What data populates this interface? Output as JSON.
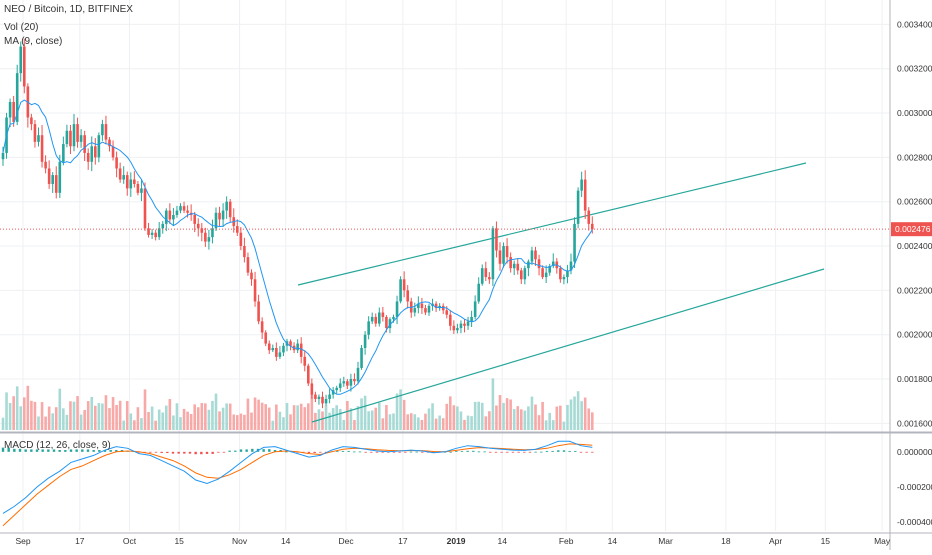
{
  "legend": {
    "title": "NEO / Bitcoin, 1D, BITFINEX",
    "volume": "Vol (20)",
    "ma": "MA (9, close)",
    "macd": "MACD (12, 26, close, 9)"
  },
  "colors": {
    "up": "#26a69a",
    "down": "#ef5350",
    "vol_up": "#a7dad4",
    "vol_down": "#f7a9a7",
    "ma": "#2196f3",
    "channel": "#26a69a",
    "price_line": "#ef5350",
    "macd_line": "#2196f3",
    "signal_line": "#ff6d00",
    "grid": "#eef0f3",
    "axis_text": "#333333"
  },
  "chart_data": [
    {
      "type": "candlestick",
      "title": "NEO / Bitcoin, 1D, BITFINEX",
      "x_ticks": [
        "Sep",
        "17",
        "Oct",
        "15",
        "Nov",
        "14",
        "Dec",
        "17",
        "2019",
        "14",
        "Feb",
        "14",
        "Mar",
        "18",
        "Apr",
        "15",
        "May"
      ],
      "x_tick_days": [
        0,
        16,
        30,
        44,
        61,
        74,
        91,
        107,
        122,
        135,
        153,
        166,
        181,
        198,
        212,
        226,
        242
      ],
      "y_ticks": [
        "0.001600",
        "0.001800",
        "0.002000",
        "0.002200",
        "0.002400",
        "0.002600",
        "0.002800",
        "0.003000",
        "0.003200",
        "0.003400"
      ],
      "ylim": [
        0.00157,
        0.00351
      ],
      "last_price": "0.002476",
      "last_price_value": 0.002476,
      "ma_label": "MA (9, close)",
      "closes": [
        0.00282,
        0.00298,
        0.00305,
        0.00296,
        0.00318,
        0.0033,
        0.00312,
        0.00298,
        0.00295,
        0.00287,
        0.0029,
        0.00278,
        0.00275,
        0.00268,
        0.00272,
        0.00264,
        0.00278,
        0.00286,
        0.00292,
        0.00285,
        0.00295,
        0.00287,
        0.0029,
        0.00282,
        0.00278,
        0.00285,
        0.0028,
        0.0029,
        0.00295,
        0.00288,
        0.00285,
        0.0028,
        0.00275,
        0.0027,
        0.00272,
        0.00266,
        0.0027,
        0.00268,
        0.00264,
        0.00266,
        0.00248,
        0.00245,
        0.00246,
        0.00244,
        0.00248,
        0.0025,
        0.00256,
        0.00252,
        0.00254,
        0.00256,
        0.00258,
        0.00256,
        0.00255,
        0.00254,
        0.0025,
        0.00248,
        0.00246,
        0.00242,
        0.00244,
        0.00248,
        0.00255,
        0.00252,
        0.00256,
        0.0026,
        0.00253,
        0.00249,
        0.00246,
        0.0024,
        0.00235,
        0.00228,
        0.00225,
        0.00215,
        0.00206,
        0.00201,
        0.00196,
        0.00193,
        0.00194,
        0.0019,
        0.00192,
        0.00195,
        0.00197,
        0.00195,
        0.00193,
        0.00196,
        0.0019,
        0.00186,
        0.00178,
        0.00173,
        0.00171,
        0.00172,
        0.00169,
        0.00171,
        0.00173,
        0.00175,
        0.00176,
        0.00178,
        0.00179,
        0.00177,
        0.0018,
        0.00179,
        0.00185,
        0.00194,
        0.002,
        0.00206,
        0.00208,
        0.00205,
        0.0021,
        0.00208,
        0.00203,
        0.00207,
        0.00208,
        0.00215,
        0.00225,
        0.0022,
        0.00215,
        0.0021,
        0.00212,
        0.00214,
        0.00212,
        0.0021,
        0.00213,
        0.00214,
        0.00212,
        0.00213,
        0.00211,
        0.00209,
        0.00204,
        0.00202,
        0.00203,
        0.00205,
        0.00204,
        0.00206,
        0.00208,
        0.00215,
        0.00223,
        0.0023,
        0.00226,
        0.00225,
        0.00248,
        0.00238,
        0.00232,
        0.0024,
        0.00235,
        0.0023,
        0.00232,
        0.00229,
        0.00225,
        0.0023,
        0.00233,
        0.00238,
        0.00234,
        0.0023,
        0.00226,
        0.00228,
        0.00231,
        0.00233,
        0.0023,
        0.00225,
        0.00226,
        0.00229,
        0.00233,
        0.0025,
        0.00265,
        0.0027,
        0.00256,
        0.0025,
        0.002476
      ],
      "macd": {
        "yticks": [
          "0.000000",
          "-0.000200",
          "-0.000400"
        ],
        "ylim": [
          -0.00045,
          9e-05
        ],
        "hist_ylim": [
          -5e-05,
          5e-05
        ],
        "series": [
          {
            "name": "MACD",
            "values": [
              -0.00035,
              -0.00031,
              -0.00026,
              -0.0002,
              -0.00015,
              -0.00011,
              -6e-05,
              -4e-05,
              -2e-05,
              1e-05,
              3e-05,
              2e-05,
              -1e-05,
              -2e-05,
              -5e-05,
              -8e-05,
              -0.00011,
              -0.00016,
              -0.00018,
              -0.000155,
              -0.00011,
              -6e-05,
              -1e-05,
              2.5e-05,
              3e-05,
              1e-05,
              -1e-05,
              -3e-05,
              -2e-05,
              1e-05,
              3e-05,
              2.5e-05,
              1.5e-05,
              5e-06,
              0.0,
              5e-06,
              1e-05,
              5e-06,
              -5e-06,
              0.0,
              2e-05,
              3.5e-05,
              3e-05,
              2e-05,
              1.5e-05,
              1e-05,
              8e-06,
              1.5e-05,
              3.5e-05,
              6e-05,
              6e-05,
              3.5e-05,
              2.5e-05
            ]
          },
          {
            "name": "Signal",
            "values": [
              -0.00042,
              -0.00036,
              -0.0003,
              -0.00024,
              -0.00019,
              -0.00014,
              -0.0001,
              -8e-05,
              -5e-05,
              -2e-05,
              0.0,
              5e-06,
              0.0,
              -1e-05,
              -3e-05,
              -5e-05,
              -8e-05,
              -0.00012,
              -0.000145,
              -0.00015,
              -0.00013,
              -0.0001,
              -6e-05,
              -2e-05,
              0.0,
              5e-06,
              0.0,
              -1e-05,
              -1.5e-05,
              0.0,
              1.5e-05,
              2e-05,
              1.8e-05,
              1.2e-05,
              8e-06,
              6e-06,
              7e-06,
              7e-06,
              2e-06,
              0.0,
              8e-06,
              1.8e-05,
              2.4e-05,
              2.2e-05,
              1.9e-05,
              1.5e-05,
              1.2e-05,
              1.3e-05,
              2e-05,
              3.5e-05,
              4.5e-05,
              4.2e-05,
              3.7e-05
            ]
          }
        ]
      },
      "volume_label": "Vol (20)"
    }
  ]
}
